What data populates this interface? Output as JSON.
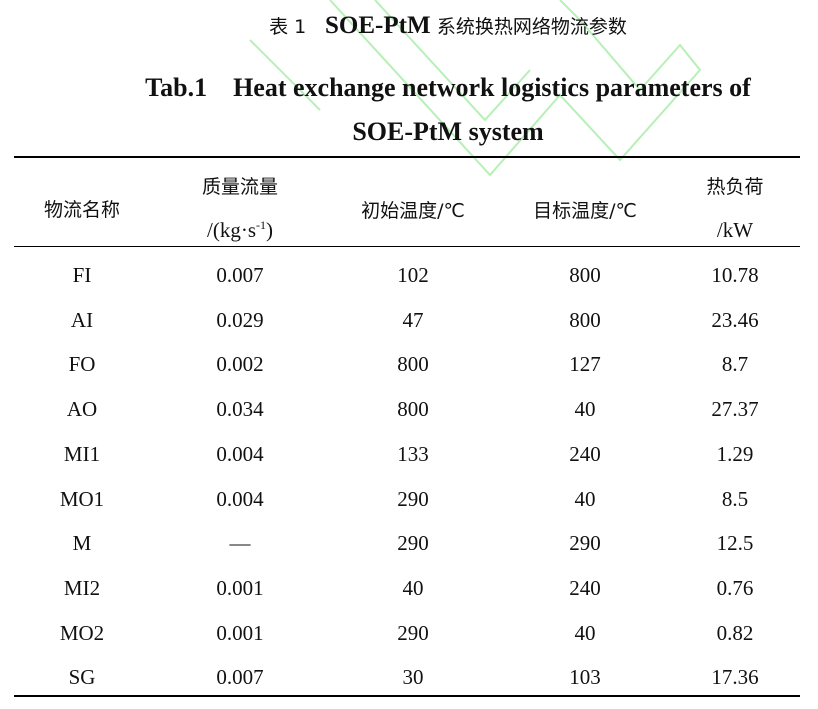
{
  "title_zh": {
    "label": "表 1",
    "code": "SOE-PtM",
    "text": "系统换热网络物流参数"
  },
  "title_en": {
    "line1": "Tab.1    Heat exchange network logistics parameters of",
    "line2": "SOE-PtM system"
  },
  "watermark_color": "#b6f0b6",
  "table": {
    "headers": {
      "name": "物流名称",
      "mass_flow": {
        "line1": "质量流量",
        "line2": "/(kg·s",
        "sup": "-1",
        "tail": ")"
      },
      "init_temp": "初始温度/℃",
      "target_temp": "目标温度/℃",
      "heat_load": {
        "line1": "热负荷",
        "line2": "/kW"
      }
    },
    "rows": [
      [
        "FI",
        "0.007",
        "102",
        "800",
        "10.78"
      ],
      [
        "AI",
        "0.029",
        "47",
        "800",
        "23.46"
      ],
      [
        "FO",
        "0.002",
        "800",
        "127",
        "8.7"
      ],
      [
        "AO",
        "0.034",
        "800",
        "40",
        "27.37"
      ],
      [
        "MI1",
        "0.004",
        "133",
        "240",
        "1.29"
      ],
      [
        "MO1",
        "0.004",
        "290",
        "40",
        "8.5"
      ],
      [
        "M",
        "—",
        "290",
        "290",
        "12.5"
      ],
      [
        "MI2",
        "0.001",
        "40",
        "240",
        "0.76"
      ],
      [
        "MO2",
        "0.001",
        "290",
        "40",
        "0.82"
      ],
      [
        "SG",
        "0.007",
        "30",
        "103",
        "17.36"
      ]
    ]
  }
}
